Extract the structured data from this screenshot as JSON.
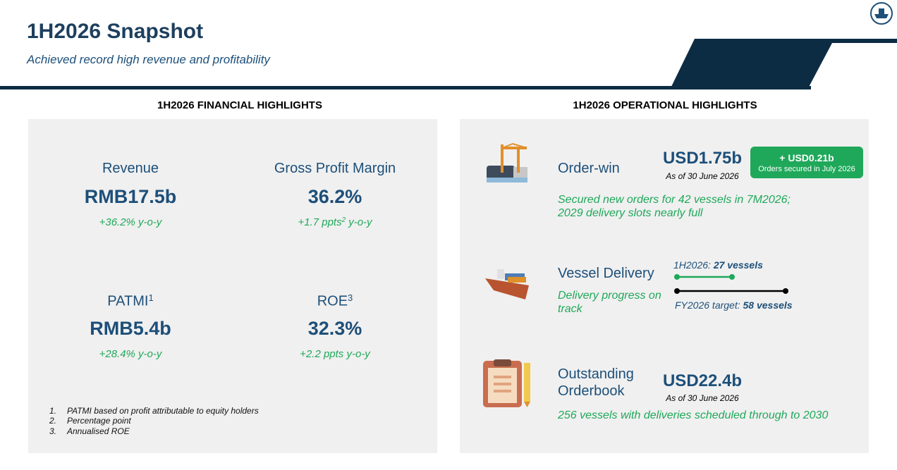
{
  "header": {
    "title": "1H2026 Snapshot",
    "subtitle": "Achieved record high revenue and profitability"
  },
  "financial": {
    "heading": "1H2026 FINANCIAL HIGHLIGHTS",
    "metrics": [
      {
        "label": "Revenue",
        "value": "RMB17.5b",
        "change": "+36.2% y-o-y"
      },
      {
        "label": "Gross Profit Margin",
        "value": "36.2%",
        "change": "+1.7 ppts",
        "change_sup": "2",
        "change_suffix": "y-o-y"
      },
      {
        "label": "PATMI",
        "label_sup": "1",
        "value": "RMB5.4b",
        "change": "+28.4% y-o-y"
      },
      {
        "label": "ROE",
        "label_sup": "3",
        "value": "32.3%",
        "change": "+2.2 ppts y-o-y"
      }
    ],
    "footnotes": [
      {
        "number": "1.",
        "text": "PATMI based on profit attributable to equity holders"
      },
      {
        "number": "2.",
        "text": "Percentage point"
      },
      {
        "number": "3.",
        "text": "Annualised ROE"
      }
    ]
  },
  "operational": {
    "heading": "1H2026 OPERATIONAL HIGHLIGHTS",
    "order_win": {
      "label": "Order-win",
      "value": "USD1.75b",
      "date": "As of 30 June 2026",
      "badge": {
        "title": "+ USD0.21b",
        "note": "Orders secured in July 2026"
      },
      "description": [
        "Secured new orders for 42 vessels in 7M2026;",
        "2029 delivery slots nearly full"
      ]
    },
    "delivery": {
      "label": "Vessel Delivery",
      "description": [
        "Delivery progress on",
        "track"
      ],
      "progress": {
        "period_label": "1H2026:",
        "period_value": "27 vessels",
        "target_label": "FY2026 target:",
        "target_value": "58 vessels"
      }
    },
    "orderbook": {
      "label": [
        "Outstanding",
        "Orderbook"
      ],
      "value": "USD22.4b",
      "date": "As of 30 June 2026",
      "description": "256 vessels with deliveries scheduled through to 2030"
    }
  }
}
